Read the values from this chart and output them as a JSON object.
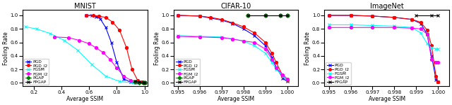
{
  "mnist": {
    "title": "MNIST",
    "xlabel": "Average SSIM",
    "ylabel": "Fooling Rate",
    "xlim": [
      0.12,
      1.02
    ],
    "ylim": [
      -0.05,
      1.08
    ],
    "xticks": [
      0.2,
      0.4,
      0.6,
      0.8,
      1.0
    ],
    "series": {
      "PGD": {
        "color": "blue",
        "marker": "x",
        "ms": 3,
        "x": [
          0.58,
          0.62,
          0.65,
          0.68,
          0.72,
          0.76,
          0.8,
          0.85,
          0.9,
          0.95,
          1.0
        ],
        "y": [
          1.0,
          1.0,
          0.98,
          0.95,
          0.82,
          0.6,
          0.3,
          0.06,
          0.01,
          0.0,
          0.0
        ]
      },
      "PGD_l2": {
        "color": "red",
        "marker": "o",
        "ms": 3,
        "x": [
          0.58,
          0.63,
          0.67,
          0.72,
          0.77,
          0.82,
          0.87,
          0.91,
          0.95,
          0.98,
          1.0
        ],
        "y": [
          1.0,
          1.0,
          0.99,
          0.97,
          0.9,
          0.78,
          0.52,
          0.2,
          0.04,
          0.01,
          0.0
        ]
      },
      "FGSM": {
        "color": "cyan",
        "marker": "x",
        "ms": 3,
        "x": [
          0.14,
          0.22,
          0.32,
          0.42,
          0.52,
          0.62,
          0.72,
          0.82,
          0.92
        ],
        "y": [
          0.83,
          0.8,
          0.73,
          0.63,
          0.48,
          0.27,
          0.1,
          0.02,
          0.0
        ]
      },
      "FGM_l2": {
        "color": "magenta",
        "marker": "o",
        "ms": 3,
        "x": [
          0.35,
          0.45,
          0.53,
          0.6,
          0.65,
          0.7,
          0.75,
          0.8,
          0.85,
          0.9,
          0.95,
          1.0
        ],
        "y": [
          0.68,
          0.67,
          0.63,
          0.58,
          0.52,
          0.45,
          0.35,
          0.22,
          0.1,
          0.04,
          0.01,
          0.0
        ]
      },
      "PGAP": {
        "color": "green",
        "marker": "D",
        "ms": 3,
        "x": [
          0.93,
          0.96,
          0.99,
          1.0
        ],
        "y": [
          0.015,
          0.008,
          0.003,
          0.0
        ]
      },
      "FPGAP": {
        "color": "black",
        "marker": "x",
        "ms": 3,
        "x": [
          0.93,
          0.96,
          0.99,
          1.0
        ],
        "y": [
          0.025,
          0.012,
          0.004,
          0.0
        ]
      }
    },
    "legend_labels": [
      "PGD",
      "PGD_l2",
      "FGSM",
      "FGM_l2",
      "PGAP",
      "FPGAP"
    ]
  },
  "cifar10": {
    "title": "CIFAR-10",
    "xlabel": "Average SSIM",
    "ylabel": "Fooling Rate",
    "xlim": [
      0.9948,
      1.0005
    ],
    "ylim": [
      -0.05,
      1.08
    ],
    "xticks": [
      0.995,
      0.996,
      0.997,
      0.998,
      0.999,
      1.0
    ],
    "xtick_labels": [
      "0.995",
      "0.996",
      "0.997",
      "0.998",
      "0.999",
      "1.000"
    ],
    "series": {
      "PGD": {
        "color": "blue",
        "marker": "x",
        "ms": 3,
        "x": [
          0.995,
          0.996,
          0.9965,
          0.997,
          0.9975,
          0.998,
          0.9985,
          0.999,
          0.9993,
          0.9995,
          0.9998,
          1.0
        ],
        "y": [
          1.0,
          0.99,
          0.96,
          0.93,
          0.88,
          0.8,
          0.7,
          0.55,
          0.38,
          0.23,
          0.07,
          0.02
        ]
      },
      "PGD_l2": {
        "color": "red",
        "marker": "o",
        "ms": 3,
        "x": [
          0.995,
          0.996,
          0.9965,
          0.997,
          0.9975,
          0.998,
          0.9985,
          0.999,
          0.9993,
          0.9995,
          0.9998,
          1.0
        ],
        "y": [
          1.0,
          0.99,
          0.97,
          0.94,
          0.89,
          0.83,
          0.74,
          0.6,
          0.44,
          0.3,
          0.1,
          0.04
        ]
      },
      "FGSM": {
        "color": "cyan",
        "marker": "x",
        "ms": 3,
        "x": [
          0.995,
          0.996,
          0.997,
          0.9975,
          0.998,
          0.9985,
          0.999,
          0.9993,
          0.9995,
          0.9998,
          1.0
        ],
        "y": [
          0.7,
          0.69,
          0.68,
          0.65,
          0.62,
          0.55,
          0.44,
          0.3,
          0.2,
          0.1,
          0.05
        ]
      },
      "FGM_l2": {
        "color": "magenta",
        "marker": "o",
        "ms": 3,
        "x": [
          0.995,
          0.996,
          0.997,
          0.9975,
          0.998,
          0.9985,
          0.999,
          0.9993,
          0.9995,
          0.9998,
          1.0
        ],
        "y": [
          0.69,
          0.68,
          0.67,
          0.65,
          0.62,
          0.6,
          0.5,
          0.35,
          0.22,
          0.12,
          0.06
        ]
      },
      "PGAP": {
        "color": "green",
        "marker": "D",
        "ms": 3,
        "x": [
          0.9982,
          0.999,
          0.9997,
          1.0
        ],
        "y": [
          1.0,
          1.0,
          1.0,
          1.0
        ]
      },
      "FPGAP": {
        "color": "black",
        "marker": "x",
        "ms": 3,
        "x": [
          0.9982,
          0.999,
          0.9997,
          1.0
        ],
        "y": [
          1.0,
          1.0,
          1.0,
          1.0
        ]
      }
    },
    "legend_labels": [
      "PGD",
      "PGD_l2",
      "FGSM",
      "FGM_l2",
      "PGAP",
      "FPGAP"
    ]
  },
  "imagenet": {
    "title": "ImageNet",
    "xlabel": "Average SSIM",
    "ylabel": "Fooling Rate",
    "xlim": [
      0.9948,
      1.0005
    ],
    "ylim": [
      -0.05,
      1.08
    ],
    "xticks": [
      0.995,
      0.996,
      0.997,
      0.998,
      0.999,
      1.0
    ],
    "xtick_labels": [
      "0.995",
      "0.996",
      "0.997",
      "0.998",
      "0.999",
      "1.000"
    ],
    "series": {
      "PGD": {
        "color": "blue",
        "marker": "x",
        "ms": 3,
        "x": [
          0.995,
          0.996,
          0.997,
          0.998,
          0.9988,
          0.9992,
          0.9995,
          0.9997,
          0.9999,
          1.0
        ],
        "y": [
          1.0,
          1.0,
          0.99,
          0.97,
          0.94,
          0.88,
          0.72,
          0.4,
          0.05,
          0.01
        ]
      },
      "PGD_l2": {
        "color": "red",
        "marker": "o",
        "ms": 3,
        "x": [
          0.995,
          0.996,
          0.997,
          0.998,
          0.9988,
          0.9992,
          0.9995,
          0.9997,
          0.9999,
          1.0
        ],
        "y": [
          1.0,
          1.0,
          0.99,
          0.97,
          0.94,
          0.9,
          0.78,
          0.55,
          0.1,
          0.01
        ]
      },
      "FGSM": {
        "color": "cyan",
        "marker": "x",
        "ms": 3,
        "x": [
          0.995,
          0.996,
          0.997,
          0.998,
          0.9988,
          0.9992,
          0.9995,
          0.9997,
          0.9999,
          1.0
        ],
        "y": [
          0.86,
          0.86,
          0.85,
          0.84,
          0.82,
          0.74,
          0.58,
          0.52,
          0.5,
          0.5
        ]
      },
      "FGM_l2": {
        "color": "magenta",
        "marker": "o",
        "ms": 3,
        "x": [
          0.995,
          0.996,
          0.997,
          0.998,
          0.9988,
          0.9992,
          0.9995,
          0.9997,
          0.9999,
          1.0
        ],
        "y": [
          0.82,
          0.82,
          0.82,
          0.82,
          0.81,
          0.8,
          0.72,
          0.35,
          0.3,
          0.3
        ]
      },
      "FPGAP": {
        "color": "black",
        "marker": "x",
        "ms": 3,
        "x": [
          0.999,
          0.9997,
          1.0
        ],
        "y": [
          1.0,
          1.0,
          1.0
        ]
      }
    },
    "legend_labels": [
      "PGD",
      "PGD_l2",
      "FGSM",
      "FGM_l2",
      "FPGAP"
    ]
  }
}
